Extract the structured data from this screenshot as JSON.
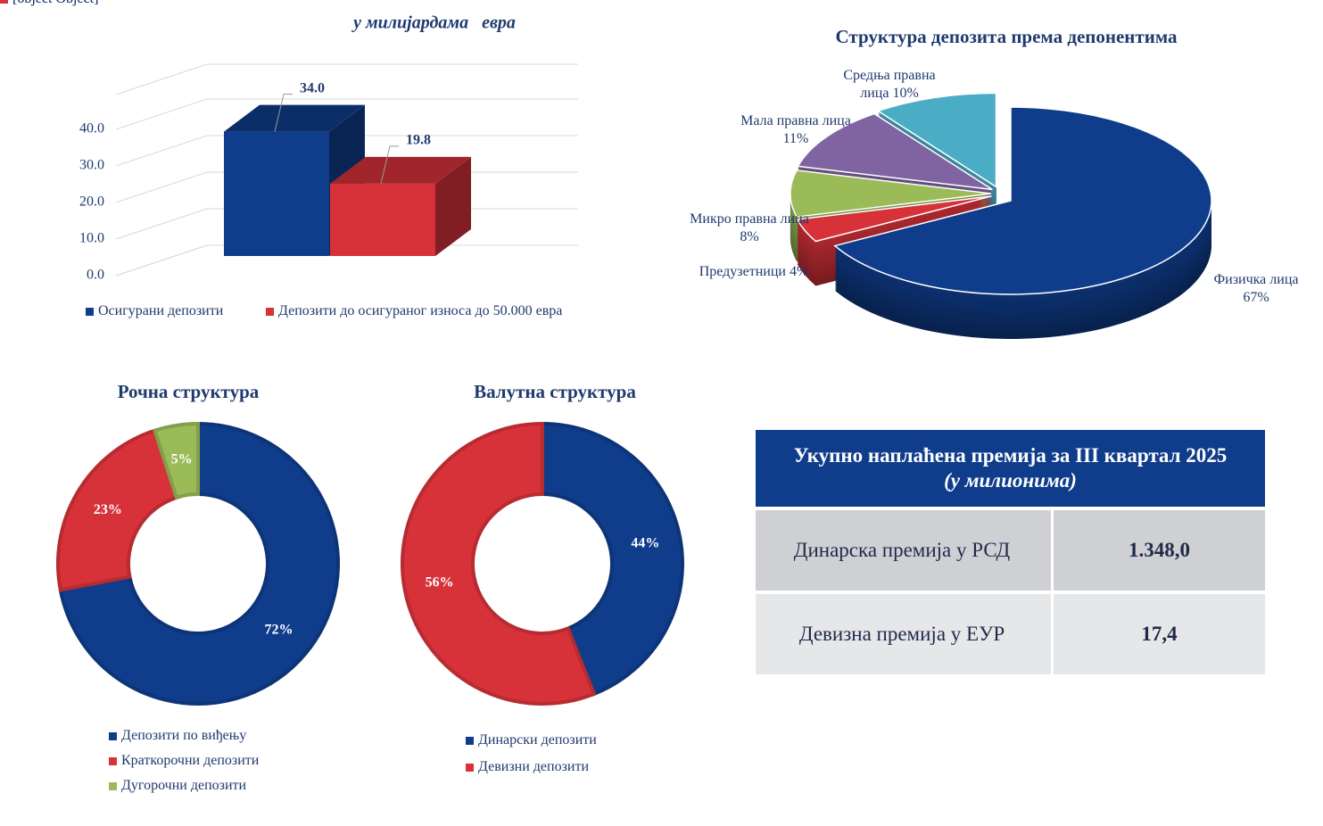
{
  "chart_data": [
    {
      "type": "bar3d",
      "subtitle": "у милијардама   евра",
      "series": [
        {
          "name": "Осигурани депозити",
          "color": "#0f3d8c",
          "values": [
            34.0
          ],
          "value_labels": [
            "34.0"
          ]
        },
        {
          "name": "Депозити до осигураног износа до 50.000 евра",
          "color": "#d7323a",
          "values": [
            19.8
          ]
        }
      ],
      "ylim": [
        0,
        50
      ],
      "yticks": [
        {
          "value": 0,
          "label": "0.0"
        },
        {
          "value": 10,
          "label": "10.0"
        },
        {
          "value": 20,
          "label": "20.0"
        },
        {
          "value": 30,
          "label": "30.0"
        },
        {
          "value": 40,
          "label": "40.0"
        }
      ],
      "grid": true
    },
    {
      "type": "pie3d",
      "title": "Структура депозита према депонентима",
      "categories": [
        "Физичка лица",
        "Предузетници",
        "Микро правна лица",
        "Мала правна лица",
        "Средња правна лица"
      ],
      "values": [
        67,
        4,
        8,
        11,
        10
      ],
      "value_labels": [
        "67%",
        "4%",
        "8%",
        "11%",
        "10%"
      ],
      "colors": [
        "#0f3d8c",
        "#d7323a",
        "#9bbb59",
        "#8064a2",
        "#4bacc6"
      ]
    },
    {
      "type": "donut",
      "title": "Рочна структура",
      "categories": [
        "Депозити по виђењу",
        "Краткорочни депозити",
        "Дугорочни депозити"
      ],
      "values": [
        72,
        23,
        5
      ],
      "value_labels": [
        "72%",
        "23%",
        "5%"
      ],
      "colors": [
        "#0f3d8c",
        "#d7323a",
        "#9bbb59"
      ]
    },
    {
      "type": "donut",
      "title": "Валутна структура",
      "categories": [
        "Динарски депозити",
        "Девизни депозити"
      ],
      "values": [
        44,
        56
      ],
      "value_labels": [
        "44%",
        "56%"
      ],
      "colors": [
        "#0f3d8c",
        "#d7323a"
      ]
    }
  ],
  "table": {
    "title": "Укупно наплаћена премија за III квартал 2025",
    "subtitle": "(у милионима)",
    "rows": [
      [
        "Динарска премија у РСД",
        "1.348,0"
      ],
      [
        "Девизна премија у ЕУР",
        "17,4"
      ]
    ]
  }
}
